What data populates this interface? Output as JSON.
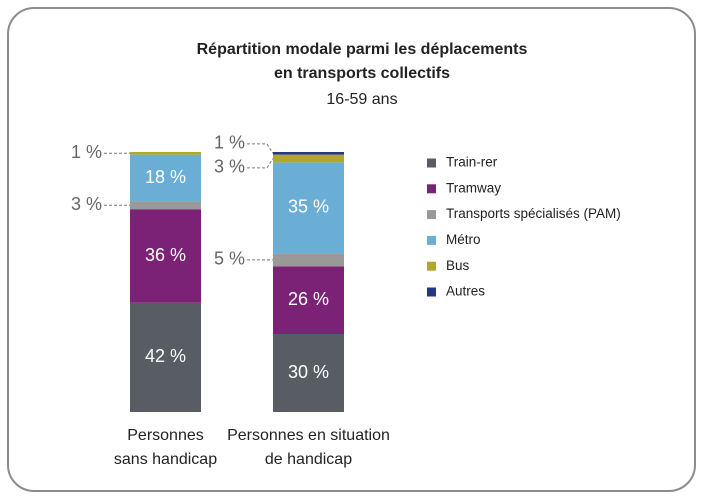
{
  "chart_data": {
    "type": "stacked-bar",
    "title": [
      "Répartition modale parmi les déplacements",
      "en transports collectifs"
    ],
    "subtitle": "16-59 ans",
    "categories": [
      [
        "Personnes",
        "sans handicap"
      ],
      [
        "Personnes en situation",
        "de handicap"
      ]
    ],
    "series": [
      {
        "name": "Train-rer",
        "color": "#585d64",
        "values": [
          42,
          30
        ],
        "value_labels": [
          "42 %",
          "30 %"
        ]
      },
      {
        "name": "Tramway",
        "color": "#7b2277",
        "values": [
          36,
          26
        ],
        "value_labels": [
          "36 %",
          "26 %"
        ]
      },
      {
        "name": "Transports spécialisés (PAM)",
        "color": "#999999",
        "values": [
          3,
          5
        ],
        "value_labels": [
          "3 %",
          "5 %"
        ]
      },
      {
        "name": "Métro",
        "color": "#6aaed6",
        "values": [
          18,
          35
        ],
        "value_labels": [
          "18 %",
          "35 %"
        ]
      },
      {
        "name": "Bus",
        "color": "#b3a72a",
        "values": [
          1,
          3
        ],
        "value_labels": [
          "1 %",
          "3 %"
        ]
      },
      {
        "name": "Autres",
        "color": "#263687",
        "values": [
          null,
          1
        ],
        "value_labels": [
          null,
          "1 %"
        ]
      }
    ]
  }
}
